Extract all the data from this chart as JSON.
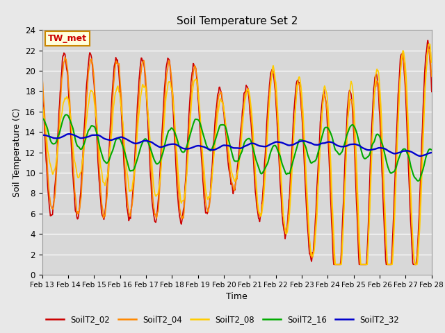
{
  "title": "Soil Temperature Set 2",
  "xlabel": "Time",
  "ylabel": "Soil Temperature (C)",
  "ylim": [
    0,
    24
  ],
  "background_color": "#e8e8e8",
  "plot_bg_color": "#d8d8d8",
  "annotation_text": "TW_met",
  "annotation_bg": "#ffffdd",
  "annotation_border": "#cc8800",
  "annotation_text_color": "#cc0000",
  "series_colors": {
    "SoilT2_02": "#cc0000",
    "SoilT2_04": "#ff8800",
    "SoilT2_08": "#ffcc00",
    "SoilT2_16": "#00aa00",
    "SoilT2_32": "#0000cc"
  },
  "xtick_labels": [
    "Feb 13",
    "Feb 14",
    "Feb 15",
    "Feb 16",
    "Feb 17",
    "Feb 18",
    "Feb 19",
    "Feb 20",
    "Feb 21",
    "Feb 22",
    "Feb 23",
    "Feb 24",
    "Feb 25",
    "Feb 26",
    "Feb 27",
    "Feb 28"
  ],
  "ytick_values": [
    0,
    2,
    4,
    6,
    8,
    10,
    12,
    14,
    16,
    18,
    20,
    22,
    24
  ]
}
